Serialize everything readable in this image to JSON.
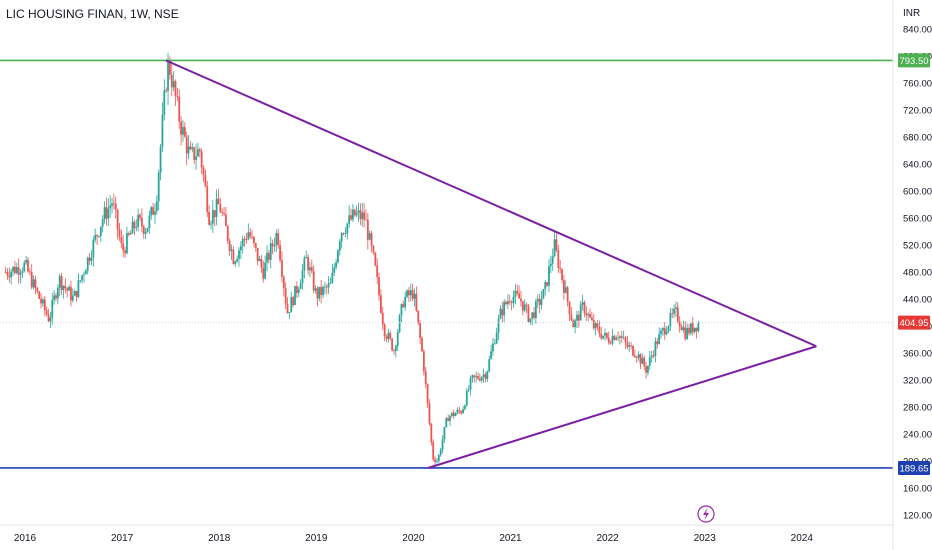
{
  "title": "LIC HOUSING FINAN, 1W, NSE",
  "currency": "INR",
  "colors": {
    "up": "#26a69a",
    "down": "#ef5350",
    "resistance": "#4caf50",
    "support": "#1e40af",
    "triangle": "#7b1fa2",
    "last_price": "#e53935"
  },
  "chart_data": {
    "type": "candlestick",
    "title": "LIC HOUSING FINAN, 1W, NSE",
    "ylabel": "INR",
    "ylim": [
      107,
      866
    ],
    "xlim": [
      2015.8,
      2024.3
    ],
    "y_ticks": [
      "120.00",
      "160.00",
      "200.00",
      "240.00",
      "280.00",
      "320.00",
      "360.00",
      "400.00",
      "440.00",
      "480.00",
      "520.00",
      "560.00",
      "600.00",
      "640.00",
      "680.00",
      "720.00",
      "760.00",
      "800.00",
      "840.00"
    ],
    "x_ticks": [
      "2016",
      "2017",
      "2018",
      "2019",
      "2020",
      "2021",
      "2022",
      "2023",
      "2024"
    ],
    "x_tick_values": [
      2016,
      2017,
      2018,
      2019,
      2020,
      2021,
      2022,
      2023,
      2024
    ],
    "price_path": [
      [
        2015.8,
        480
      ],
      [
        2016.0,
        490
      ],
      [
        2016.15,
        440
      ],
      [
        2016.25,
        410
      ],
      [
        2016.35,
        470
      ],
      [
        2016.5,
        440
      ],
      [
        2016.65,
        500
      ],
      [
        2016.8,
        560
      ],
      [
        2016.9,
        585
      ],
      [
        2017.0,
        510
      ],
      [
        2017.15,
        555
      ],
      [
        2017.25,
        545
      ],
      [
        2017.35,
        585
      ],
      [
        2017.45,
        760
      ],
      [
        2017.48,
        790
      ],
      [
        2017.6,
        700
      ],
      [
        2017.7,
        650
      ],
      [
        2017.8,
        660
      ],
      [
        2017.9,
        560
      ],
      [
        2018.0,
        580
      ],
      [
        2018.15,
        500
      ],
      [
        2018.3,
        540
      ],
      [
        2018.45,
        480
      ],
      [
        2018.6,
        540
      ],
      [
        2018.7,
        420
      ],
      [
        2018.8,
        455
      ],
      [
        2018.9,
        500
      ],
      [
        2019.0,
        445
      ],
      [
        2019.15,
        460
      ],
      [
        2019.25,
        540
      ],
      [
        2019.4,
        565
      ],
      [
        2019.5,
        560
      ],
      [
        2019.6,
        490
      ],
      [
        2019.7,
        395
      ],
      [
        2019.8,
        365
      ],
      [
        2019.9,
        440
      ],
      [
        2020.0,
        450
      ],
      [
        2020.1,
        350
      ],
      [
        2020.2,
        205
      ],
      [
        2020.25,
        200
      ],
      [
        2020.35,
        265
      ],
      [
        2020.5,
        275
      ],
      [
        2020.6,
        320
      ],
      [
        2020.75,
        330
      ],
      [
        2020.9,
        420
      ],
      [
        2021.0,
        445
      ],
      [
        2021.1,
        440
      ],
      [
        2021.2,
        410
      ],
      [
        2021.35,
        450
      ],
      [
        2021.45,
        520
      ],
      [
        2021.55,
        460
      ],
      [
        2021.65,
        400
      ],
      [
        2021.75,
        430
      ],
      [
        2021.85,
        400
      ],
      [
        2022.0,
        380
      ],
      [
        2022.1,
        390
      ],
      [
        2022.2,
        370
      ],
      [
        2022.3,
        360
      ],
      [
        2022.4,
        335
      ],
      [
        2022.5,
        375
      ],
      [
        2022.6,
        400
      ],
      [
        2022.7,
        420
      ],
      [
        2022.8,
        390
      ],
      [
        2022.95,
        405
      ]
    ],
    "horizontal_levels": [
      {
        "value": 793.5,
        "label": "793.50",
        "color": "resistance"
      },
      {
        "value": 189.65,
        "label": "189.65",
        "color": "support"
      }
    ],
    "last_price": {
      "value": 404.95,
      "label": "404.95"
    },
    "trendlines": [
      {
        "name": "upper",
        "from": [
          2017.45,
          793.5
        ],
        "to": [
          2024.15,
          370
        ]
      },
      {
        "name": "lower",
        "from": [
          2020.15,
          189.65
        ],
        "to": [
          2024.15,
          370
        ]
      }
    ],
    "grid": false,
    "legend": "none"
  }
}
